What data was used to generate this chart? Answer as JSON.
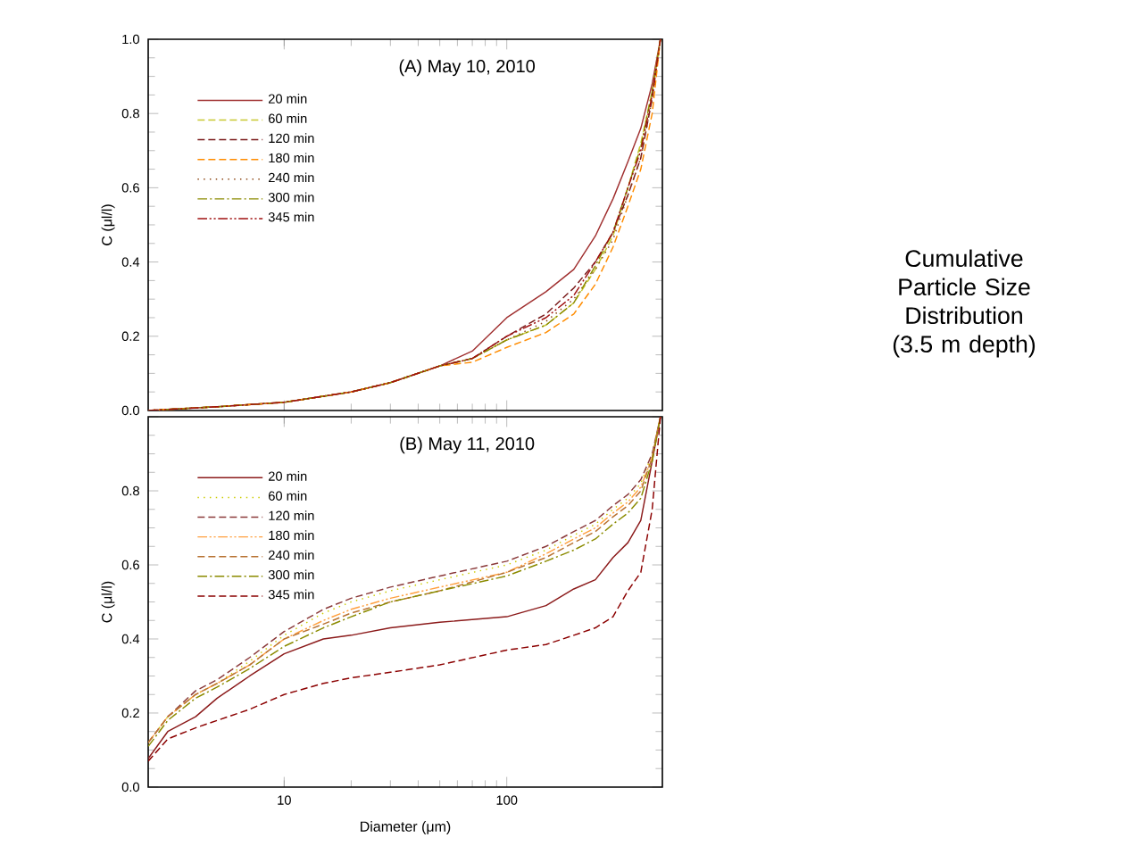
{
  "chart_data": [
    {
      "type": "line",
      "title": "(A) May 10, 2010",
      "ylabel": "C (μl/l)",
      "xlim": [
        2.45,
        500
      ],
      "ylim": [
        0,
        1
      ],
      "log": "x",
      "tick_labels": "y",
      "legend": "top left",
      "xticks": [
        10,
        100
      ],
      "yticks": [
        {
          "value": 0,
          "label": "0.0"
        },
        {
          "value": 0.2,
          "label": "0.2"
        },
        {
          "value": 0.4,
          "label": "0.4"
        },
        {
          "value": 0.6,
          "label": "0.6"
        },
        {
          "value": 0.8,
          "label": "0.8"
        },
        {
          "value": 1,
          "label": "1.0"
        }
      ],
      "x": [
        2.45,
        3,
        5,
        10,
        20,
        30,
        50,
        70,
        100,
        150,
        200,
        250,
        300,
        350,
        400,
        450,
        490
      ],
      "series": [
        {
          "name": "20 min",
          "color": "#a03030",
          "line_style": "solid",
          "values": [
            0,
            0.003,
            0.01,
            0.022,
            0.05,
            0.075,
            0.12,
            0.16,
            0.25,
            0.32,
            0.38,
            0.47,
            0.57,
            0.67,
            0.76,
            0.88,
            1.0
          ]
        },
        {
          "name": "60 min",
          "color": "#c8c830",
          "line_style": "dashed",
          "values": [
            0,
            0.003,
            0.01,
            0.022,
            0.05,
            0.075,
            0.12,
            0.14,
            0.19,
            0.23,
            0.29,
            0.38,
            0.47,
            0.6,
            0.72,
            0.86,
            1.0
          ]
        },
        {
          "name": "120 min",
          "color": "#7a1a1a",
          "line_style": "dashed",
          "values": [
            0,
            0.003,
            0.01,
            0.022,
            0.05,
            0.075,
            0.12,
            0.14,
            0.2,
            0.26,
            0.33,
            0.4,
            0.48,
            0.58,
            0.68,
            0.84,
            1.0
          ]
        },
        {
          "name": "180 min",
          "color": "#ff8c00",
          "line_style": "dashed",
          "values": [
            0,
            0.003,
            0.01,
            0.022,
            0.05,
            0.075,
            0.12,
            0.13,
            0.17,
            0.21,
            0.26,
            0.34,
            0.44,
            0.55,
            0.65,
            0.8,
            1.0
          ]
        },
        {
          "name": "240 min",
          "color": "#8b4513",
          "line_style": "dotted",
          "values": [
            0,
            0.003,
            0.01,
            0.022,
            0.05,
            0.075,
            0.12,
            0.14,
            0.19,
            0.24,
            0.3,
            0.38,
            0.46,
            0.58,
            0.68,
            0.84,
            1.0
          ]
        },
        {
          "name": "300 min",
          "color": "#8b8b00",
          "line_style": "dashdot",
          "values": [
            0,
            0.003,
            0.01,
            0.022,
            0.05,
            0.075,
            0.12,
            0.14,
            0.19,
            0.23,
            0.29,
            0.39,
            0.48,
            0.6,
            0.71,
            0.86,
            1.0
          ]
        },
        {
          "name": "345 min",
          "color": "#a01010",
          "line_style": "dashdotdot",
          "values": [
            0,
            0.003,
            0.01,
            0.022,
            0.05,
            0.075,
            0.12,
            0.14,
            0.2,
            0.25,
            0.31,
            0.4,
            0.48,
            0.6,
            0.7,
            0.85,
            1.0
          ]
        }
      ]
    },
    {
      "type": "line",
      "title": "(B) May 11, 2010",
      "xlabel": "Diameter (μm)",
      "ylabel": "C (μl/l)",
      "xlim": [
        2.45,
        500
      ],
      "ylim": [
        0,
        1
      ],
      "log": "x",
      "legend": "top left",
      "xticks": [
        10,
        100
      ],
      "yticks": [
        {
          "value": 0,
          "label": "0.0"
        },
        {
          "value": 0.2,
          "label": "0.2"
        },
        {
          "value": 0.4,
          "label": "0.4"
        },
        {
          "value": 0.6,
          "label": "0.6"
        },
        {
          "value": 0.8,
          "label": "0.8"
        },
        {
          "value": 1,
          "label": null
        }
      ],
      "x": [
        2.45,
        3,
        4,
        5,
        7,
        10,
        15,
        20,
        30,
        50,
        100,
        150,
        200,
        250,
        300,
        350,
        400,
        450,
        490
      ],
      "series": [
        {
          "name": "20 min",
          "color": "#8b1a1a",
          "line_style": "solid",
          "values": [
            0.077,
            0.15,
            0.19,
            0.24,
            0.3,
            0.36,
            0.4,
            0.41,
            0.43,
            0.445,
            0.46,
            0.49,
            0.535,
            0.56,
            0.62,
            0.66,
            0.72,
            0.88,
            1.0
          ]
        },
        {
          "name": "60 min",
          "color": "#cccc00",
          "line_style": "dotted",
          "values": [
            0.12,
            0.19,
            0.25,
            0.28,
            0.34,
            0.41,
            0.47,
            0.5,
            0.53,
            0.56,
            0.6,
            0.64,
            0.68,
            0.71,
            0.75,
            0.78,
            0.82,
            0.9,
            1.0
          ]
        },
        {
          "name": "120 min",
          "color": "#8b3a3a",
          "line_style": "dashed",
          "values": [
            0.12,
            0.19,
            0.26,
            0.29,
            0.35,
            0.42,
            0.48,
            0.51,
            0.54,
            0.57,
            0.61,
            0.65,
            0.69,
            0.72,
            0.76,
            0.79,
            0.83,
            0.9,
            1.0
          ]
        },
        {
          "name": "180 min",
          "color": "#ffa040",
          "line_style": "dashdotdot",
          "values": [
            0.12,
            0.19,
            0.25,
            0.28,
            0.33,
            0.4,
            0.45,
            0.48,
            0.51,
            0.54,
            0.58,
            0.63,
            0.67,
            0.7,
            0.74,
            0.77,
            0.81,
            0.89,
            1.0
          ]
        },
        {
          "name": "240 min",
          "color": "#b87333",
          "line_style": "dashed",
          "values": [
            0.12,
            0.19,
            0.25,
            0.28,
            0.33,
            0.4,
            0.44,
            0.47,
            0.5,
            0.53,
            0.58,
            0.62,
            0.66,
            0.69,
            0.73,
            0.76,
            0.8,
            0.89,
            1.0
          ]
        },
        {
          "name": "300 min",
          "color": "#8b8b00",
          "line_style": "dashdot",
          "values": [
            0.11,
            0.18,
            0.24,
            0.27,
            0.32,
            0.38,
            0.43,
            0.46,
            0.5,
            0.53,
            0.57,
            0.61,
            0.64,
            0.67,
            0.71,
            0.74,
            0.78,
            0.88,
            1.0
          ]
        },
        {
          "name": "345 min",
          "color": "#8b0000",
          "line_style": "dashed",
          "values": [
            0.07,
            0.13,
            0.16,
            0.18,
            0.21,
            0.25,
            0.28,
            0.295,
            0.31,
            0.33,
            0.37,
            0.385,
            0.41,
            0.43,
            0.46,
            0.53,
            0.58,
            0.75,
            1.0
          ]
        }
      ]
    },
    {
      "type": "other",
      "title": "Cumulative Particle Size Distribution (3.5 m depth)"
    }
  ]
}
